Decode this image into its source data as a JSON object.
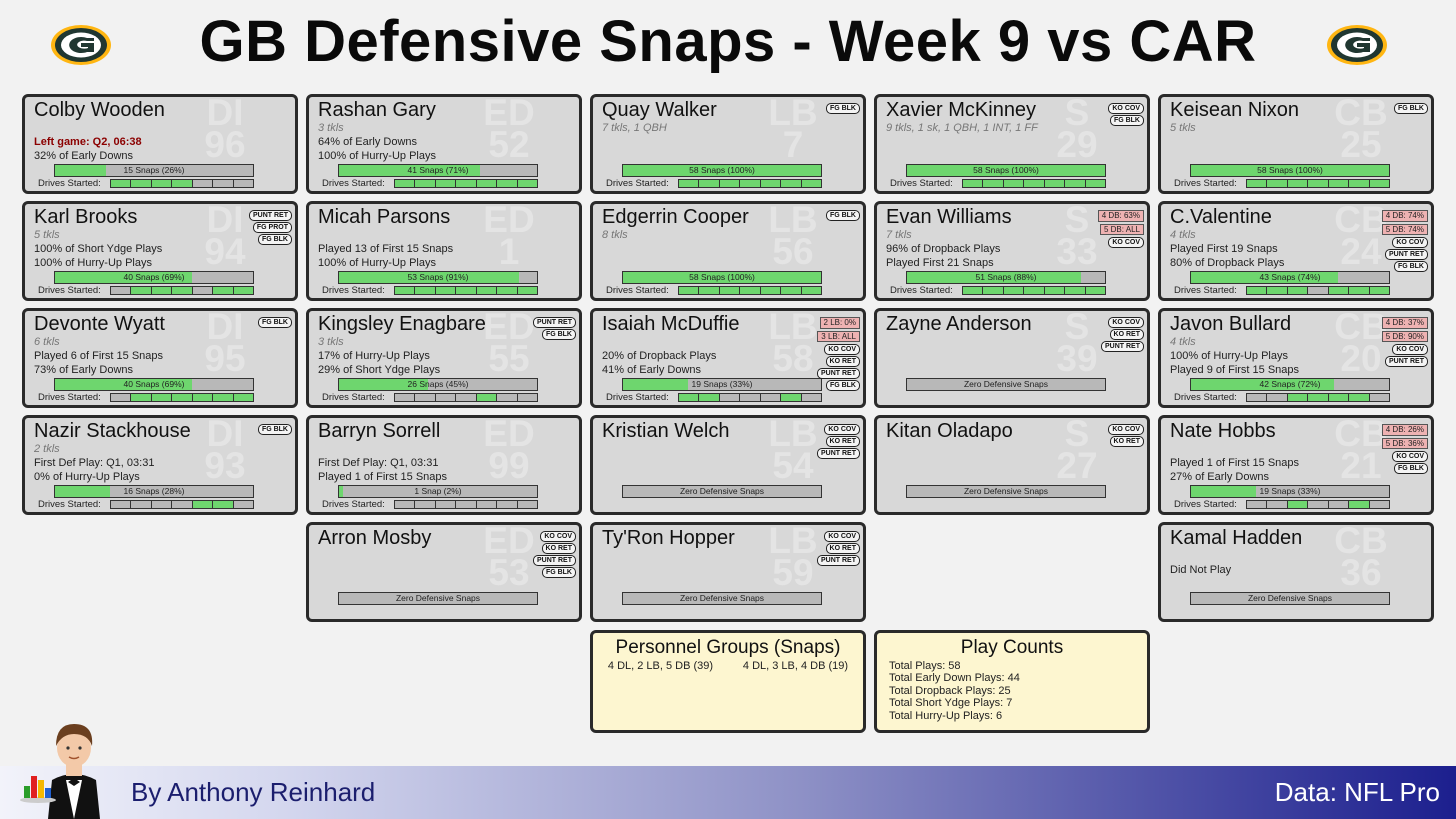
{
  "title": "GB Defensive Snaps - Week 9 vs CAR",
  "footer": {
    "author": "By Anthony Reinhard",
    "source": "Data: NFL Pro"
  },
  "labels": {
    "drives": "Drives Started:"
  },
  "colors": {
    "card_bg": "#d8d8d8",
    "snap_fill": "#6ed66e",
    "alert_bg": "#eeb2b2",
    "note_bg": "#fdf6d0",
    "packers_green": "#203731",
    "packers_gold": "#ffb612"
  },
  "players": [
    {
      "name": "Colby Wooden",
      "pos": "DI",
      "num": "96",
      "stat": "",
      "lines": [
        "Left game: Q2, 06:38",
        "32% of Early Downs"
      ],
      "line1_alert": true,
      "snaps": "15 Snaps (26%)",
      "pct": 26,
      "drives": [
        1,
        1,
        1,
        1,
        0,
        0,
        0
      ],
      "tags": [],
      "alerts": []
    },
    {
      "name": "Rashan Gary",
      "pos": "ED",
      "num": "52",
      "stat": "3 tkls",
      "lines": [
        "64% of Early Downs",
        "100% of Hurry-Up Plays"
      ],
      "snaps": "41 Snaps (71%)",
      "pct": 71,
      "drives": [
        1,
        1,
        1,
        1,
        1,
        1,
        1
      ],
      "tags": [],
      "alerts": []
    },
    {
      "name": "Quay Walker",
      "pos": "LB",
      "num": "7",
      "stat": "7 tkls, 1 QBH",
      "lines": [
        "",
        ""
      ],
      "snaps": "58 Snaps (100%)",
      "pct": 100,
      "drives": [
        1,
        1,
        1,
        1,
        1,
        1,
        1
      ],
      "tags": [
        "FG BLK"
      ],
      "alerts": []
    },
    {
      "name": "Xavier McKinney",
      "pos": "S",
      "num": "29",
      "stat": "9 tkls, 1 sk, 1 QBH, 1 INT, 1 FF",
      "lines": [
        "",
        ""
      ],
      "snaps": "58 Snaps (100%)",
      "pct": 100,
      "drives": [
        1,
        1,
        1,
        1,
        1,
        1,
        1
      ],
      "tags": [
        "KO COV",
        "FG BLK"
      ],
      "alerts": []
    },
    {
      "name": "Keisean Nixon",
      "pos": "CB",
      "num": "25",
      "stat": "5 tkls",
      "lines": [
        "",
        ""
      ],
      "snaps": "58 Snaps (100%)",
      "pct": 100,
      "drives": [
        1,
        1,
        1,
        1,
        1,
        1,
        1
      ],
      "tags": [
        "FG BLK"
      ],
      "alerts": []
    },
    {
      "name": "Karl Brooks",
      "pos": "DI",
      "num": "94",
      "stat": "5 tkls",
      "lines": [
        "100% of Short Ydge Plays",
        "100% of Hurry-Up Plays"
      ],
      "snaps": "40 Snaps (69%)",
      "pct": 69,
      "drives": [
        0,
        1,
        1,
        1,
        0,
        1,
        1
      ],
      "tags": [
        "PUNT RET",
        "FG PROT",
        "FG BLK"
      ],
      "alerts": []
    },
    {
      "name": "Micah Parsons",
      "pos": "ED",
      "num": "1",
      "stat": "",
      "lines": [
        "Played 13 of First 15 Snaps",
        "100% of Hurry-Up Plays"
      ],
      "snaps": "53 Snaps (91%)",
      "pct": 91,
      "drives": [
        1,
        1,
        1,
        1,
        1,
        1,
        1
      ],
      "tags": [],
      "alerts": []
    },
    {
      "name": "Edgerrin Cooper",
      "pos": "LB",
      "num": "56",
      "stat": "8 tkls",
      "lines": [
        "",
        ""
      ],
      "snaps": "58 Snaps (100%)",
      "pct": 100,
      "drives": [
        1,
        1,
        1,
        1,
        1,
        1,
        1
      ],
      "tags": [
        "FG BLK"
      ],
      "alerts": []
    },
    {
      "name": "Evan Williams",
      "pos": "S",
      "num": "33",
      "stat": "7 tkls",
      "lines": [
        "96% of Dropback Plays",
        "Played First 21 Snaps"
      ],
      "snaps": "51 Snaps (88%)",
      "pct": 88,
      "drives": [
        1,
        1,
        1,
        1,
        1,
        1,
        1
      ],
      "tags": [
        "KO COV"
      ],
      "alerts": [
        "4 DB: 63%",
        "5 DB: ALL"
      ]
    },
    {
      "name": "C.Valentine",
      "pos": "CB",
      "num": "24",
      "stat": "4 tkls",
      "lines": [
        "Played First 19 Snaps",
        "80% of Dropback Plays"
      ],
      "snaps": "43 Snaps (74%)",
      "pct": 74,
      "drives": [
        1,
        1,
        1,
        0,
        1,
        1,
        1
      ],
      "tags": [
        "KO COV",
        "PUNT RET",
        "FG BLK"
      ],
      "alerts": [
        "4 DB: 74%",
        "5 DB: 74%"
      ]
    },
    {
      "name": "Devonte Wyatt",
      "pos": "DI",
      "num": "95",
      "stat": "6 tkls",
      "lines": [
        "Played 6 of First 15 Snaps",
        "73% of Early Downs"
      ],
      "snaps": "40 Snaps (69%)",
      "pct": 69,
      "drives": [
        0,
        1,
        1,
        1,
        1,
        1,
        1
      ],
      "tags": [
        "FG BLK"
      ],
      "alerts": []
    },
    {
      "name": "Kingsley Enagbare",
      "pos": "ED",
      "num": "55",
      "stat": "3 tkls",
      "lines": [
        "17% of Hurry-Up Plays",
        "29% of Short Ydge Plays"
      ],
      "snaps": "26 Snaps (45%)",
      "pct": 45,
      "drives": [
        0,
        0,
        0,
        0,
        1,
        0,
        0
      ],
      "tags": [
        "PUNT RET",
        "FG BLK"
      ],
      "alerts": []
    },
    {
      "name": "Isaiah McDuffie",
      "pos": "LB",
      "num": "58",
      "stat": "",
      "lines": [
        "20% of Dropback Plays",
        "41% of Early Downs"
      ],
      "snaps": "19 Snaps (33%)",
      "pct": 33,
      "drives": [
        1,
        1,
        0,
        0,
        0,
        1,
        0
      ],
      "tags": [
        "KO COV",
        "KO RET",
        "PUNT RET",
        "FG BLK"
      ],
      "alerts": [
        "2 LB:  0%",
        "3 LB: ALL"
      ]
    },
    {
      "name": "Zayne Anderson",
      "pos": "S",
      "num": "39",
      "stat": "",
      "lines": [
        "",
        ""
      ],
      "snaps": "Zero Defensive Snaps",
      "pct": 0,
      "drives": null,
      "tags": [
        "KO COV",
        "KO RET",
        "PUNT RET"
      ],
      "alerts": []
    },
    {
      "name": "Javon Bullard",
      "pos": "CB",
      "num": "20",
      "stat": "4 tkls",
      "lines": [
        "100% of Hurry-Up Plays",
        "Played 9 of First 15 Snaps"
      ],
      "snaps": "42 Snaps (72%)",
      "pct": 72,
      "drives": [
        0,
        0,
        1,
        1,
        1,
        1,
        0
      ],
      "tags": [
        "KO COV",
        "PUNT RET"
      ],
      "alerts": [
        "4 DB: 37%",
        "5 DB: 90%"
      ]
    },
    {
      "name": "Nazir Stackhouse",
      "pos": "DI",
      "num": "93",
      "stat": "2 tkls",
      "lines": [
        "First Def Play: Q1, 03:31",
        "0% of Hurry-Up Plays"
      ],
      "snaps": "16 Snaps (28%)",
      "pct": 28,
      "drives": [
        0,
        0,
        0,
        0,
        1,
        1,
        0
      ],
      "tags": [
        "FG BLK"
      ],
      "alerts": []
    },
    {
      "name": "Barryn Sorrell",
      "pos": "ED",
      "num": "99",
      "stat": "",
      "lines": [
        "First Def Play: Q1, 03:31",
        "Played 1 of First 15 Snaps"
      ],
      "snaps": "1 Snap (2%)",
      "pct": 2,
      "drives": [
        0,
        0,
        0,
        0,
        0,
        0,
        0
      ],
      "tags": [],
      "alerts": []
    },
    {
      "name": "Kristian Welch",
      "pos": "LB",
      "num": "54",
      "stat": "",
      "lines": [
        "",
        ""
      ],
      "snaps": "Zero Defensive Snaps",
      "pct": 0,
      "drives": null,
      "tags": [
        "KO COV",
        "KO RET",
        "PUNT RET"
      ],
      "alerts": []
    },
    {
      "name": "Kitan Oladapo",
      "pos": "S",
      "num": "27",
      "stat": "",
      "lines": [
        "",
        ""
      ],
      "snaps": "Zero Defensive Snaps",
      "pct": 0,
      "drives": null,
      "tags": [
        "KO COV",
        "KO RET"
      ],
      "alerts": []
    },
    {
      "name": "Nate Hobbs",
      "pos": "CB",
      "num": "21",
      "stat": "",
      "lines": [
        "Played 1 of First 15 Snaps",
        "27% of Early Downs"
      ],
      "snaps": "19 Snaps (33%)",
      "pct": 33,
      "drives": [
        0,
        0,
        1,
        0,
        0,
        1,
        0
      ],
      "tags": [
        "KO COV",
        "FG BLK"
      ],
      "alerts": [
        "4 DB: 26%",
        "5 DB: 36%"
      ]
    },
    {
      "name": "Arron Mosby",
      "pos": "ED",
      "num": "53",
      "stat": "",
      "lines": [
        "",
        ""
      ],
      "snaps": "Zero Defensive Snaps",
      "pct": 0,
      "drives": null,
      "tags": [
        "KO COV",
        "KO RET",
        "PUNT RET",
        "FG BLK"
      ],
      "alerts": []
    },
    {
      "name": "Ty'Ron Hopper",
      "pos": "LB",
      "num": "59",
      "stat": "",
      "lines": [
        "",
        ""
      ],
      "snaps": "Zero Defensive Snaps",
      "pct": 0,
      "drives": null,
      "tags": [
        "KO COV",
        "KO RET",
        "PUNT RET"
      ],
      "alerts": []
    },
    {
      "name": "Kamal Hadden",
      "pos": "CB",
      "num": "36",
      "stat": "",
      "lines": [
        "Did Not Play",
        ""
      ],
      "snaps": "Zero Defensive Snaps",
      "pct": 0,
      "drives": null,
      "tags": [],
      "alerts": []
    }
  ],
  "personnel": {
    "title": "Personnel Groups (Snaps)",
    "groups": [
      "4 DL, 2 LB, 5 DB (39)",
      "4 DL, 3 LB, 4 DB (19)"
    ]
  },
  "playcounts": {
    "title": "Play Counts",
    "items": [
      "Total Plays: 58",
      "Total Early Down Plays: 44",
      "Total Dropback Plays: 25",
      "Total Short Ydge Plays: 7",
      "Total Hurry-Up Plays: 6"
    ]
  }
}
